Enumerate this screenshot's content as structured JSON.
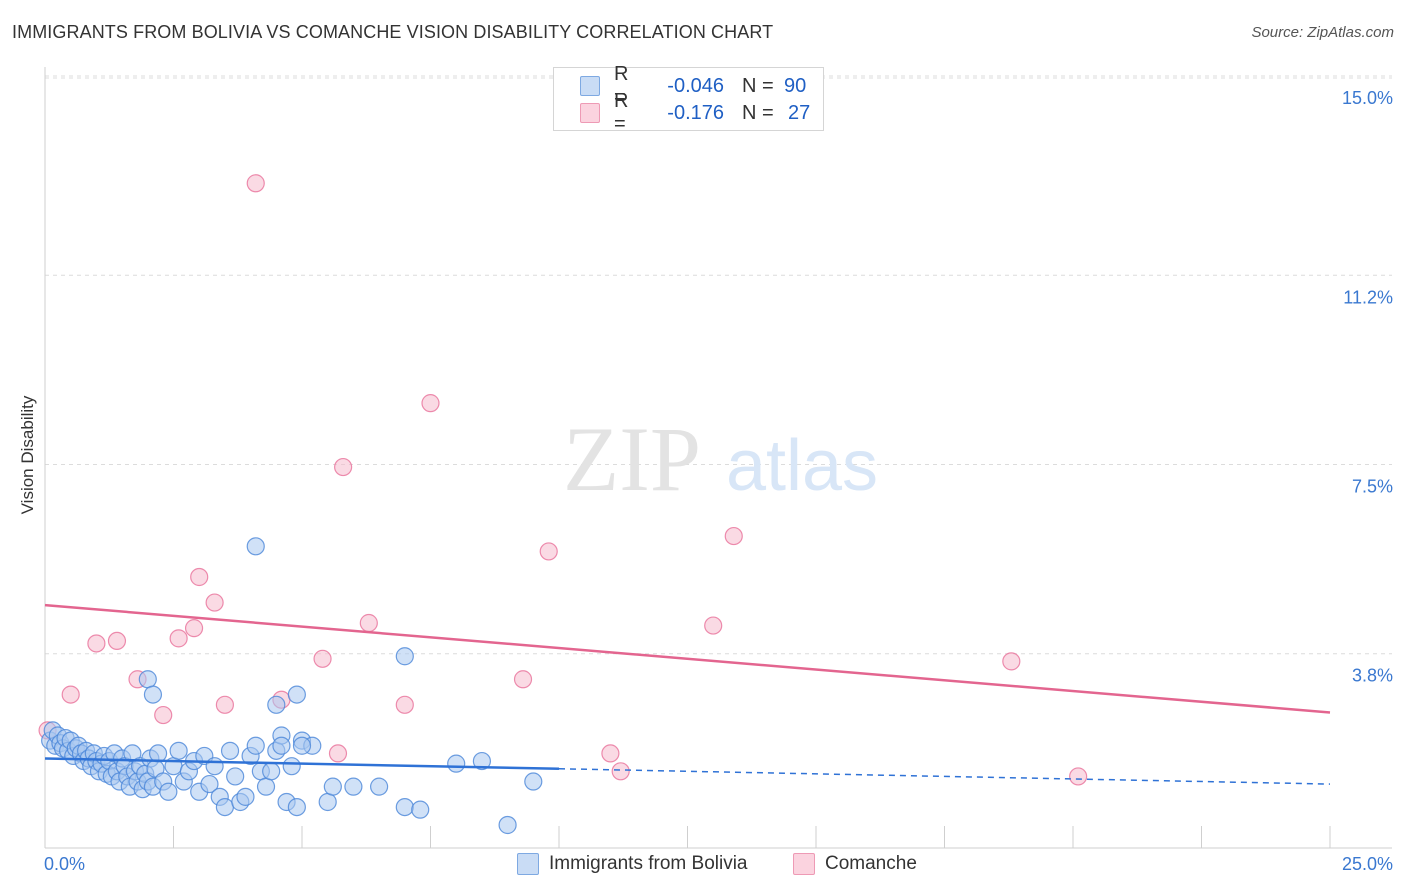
{
  "title": "IMMIGRANTS FROM BOLIVIA VS COMANCHE VISION DISABILITY CORRELATION CHART",
  "source": "Source: ZipAtlas.com",
  "watermark": {
    "zip": "ZIP",
    "atlas": "atlas"
  },
  "legend": {
    "rows": [
      {
        "r_label": "R =",
        "r_value": "-0.046",
        "n_label": "N =",
        "n_value": "90",
        "color": "#a9c8f0"
      },
      {
        "r_label": "R =",
        "r_value": "-0.176",
        "n_label": "N =",
        "n_value": "27",
        "color": "#f6bccd"
      }
    ]
  },
  "bottom_legend": [
    {
      "label": "Immigrants from Bolivia",
      "color": "#a9c8f0"
    },
    {
      "label": "Comanche",
      "color": "#f6bccd"
    }
  ],
  "chart_data": {
    "type": "scatter",
    "title": "IMMIGRANTS FROM BOLIVIA VS COMANCHE VISION DISABILITY CORRELATION CHART",
    "xlabel": "",
    "ylabel": "Vision Disability",
    "xlim": [
      0,
      25
    ],
    "ylim": [
      0,
      15
    ],
    "x_tick_labels": [
      {
        "value": 0,
        "label": "0.0%"
      },
      {
        "value": 25,
        "label": "25.0%"
      }
    ],
    "y_tick_labels": [
      {
        "value": 3.8,
        "label": "3.8%"
      },
      {
        "value": 7.5,
        "label": "7.5%"
      },
      {
        "value": 11.2,
        "label": "11.2%"
      },
      {
        "value": 15.0,
        "label": "15.0%"
      }
    ],
    "series": [
      {
        "name": "Immigrants from Bolivia",
        "color": "#4a86d8",
        "fill": "#a9c8f0",
        "trend": {
          "x0": 0,
          "y0": 1.75,
          "x1": 10,
          "y1": 1.55,
          "dash_x1": 25,
          "dash_y1": 1.25
        },
        "points": [
          [
            0.1,
            2.1
          ],
          [
            0.15,
            2.3
          ],
          [
            0.2,
            2.0
          ],
          [
            0.25,
            2.2
          ],
          [
            0.3,
            2.05
          ],
          [
            0.35,
            1.95
          ],
          [
            0.4,
            2.15
          ],
          [
            0.45,
            1.9
          ],
          [
            0.5,
            2.1
          ],
          [
            0.55,
            1.8
          ],
          [
            0.6,
            1.95
          ],
          [
            0.65,
            2.0
          ],
          [
            0.7,
            1.85
          ],
          [
            0.75,
            1.7
          ],
          [
            0.8,
            1.9
          ],
          [
            0.85,
            1.75
          ],
          [
            0.9,
            1.6
          ],
          [
            0.95,
            1.85
          ],
          [
            1.0,
            1.7
          ],
          [
            1.05,
            1.5
          ],
          [
            1.1,
            1.65
          ],
          [
            1.15,
            1.8
          ],
          [
            1.2,
            1.45
          ],
          [
            1.25,
            1.7
          ],
          [
            1.3,
            1.4
          ],
          [
            1.35,
            1.85
          ],
          [
            1.4,
            1.5
          ],
          [
            1.45,
            1.3
          ],
          [
            1.5,
            1.75
          ],
          [
            1.55,
            1.6
          ],
          [
            1.6,
            1.4
          ],
          [
            1.65,
            1.2
          ],
          [
            1.7,
            1.85
          ],
          [
            1.75,
            1.5
          ],
          [
            1.8,
            1.3
          ],
          [
            1.85,
            1.6
          ],
          [
            1.9,
            1.15
          ],
          [
            1.95,
            1.45
          ],
          [
            2.0,
            1.3
          ],
          [
            2.05,
            1.75
          ],
          [
            2.1,
            1.2
          ],
          [
            2.15,
            1.55
          ],
          [
            2.2,
            1.85
          ],
          [
            2.3,
            1.3
          ],
          [
            2.4,
            1.1
          ],
          [
            2.5,
            1.6
          ],
          [
            2.6,
            1.9
          ],
          [
            2.7,
            1.3
          ],
          [
            2.8,
            1.5
          ],
          [
            2.9,
            1.7
          ],
          [
            3.0,
            1.1
          ],
          [
            3.1,
            1.8
          ],
          [
            3.2,
            1.25
          ],
          [
            3.3,
            1.6
          ],
          [
            3.4,
            1.0
          ],
          [
            3.5,
            0.8
          ],
          [
            3.6,
            1.9
          ],
          [
            3.7,
            1.4
          ],
          [
            3.8,
            0.9
          ],
          [
            3.9,
            1.0
          ],
          [
            4.0,
            1.8
          ],
          [
            4.1,
            2.0
          ],
          [
            4.2,
            1.5
          ],
          [
            4.3,
            1.2
          ],
          [
            4.4,
            1.5
          ],
          [
            4.5,
            1.9
          ],
          [
            4.6,
            2.2
          ],
          [
            4.7,
            0.9
          ],
          [
            4.8,
            1.6
          ],
          [
            4.9,
            0.8
          ],
          [
            5.0,
            2.1
          ],
          [
            5.2,
            2.0
          ],
          [
            5.5,
            0.9
          ],
          [
            6.0,
            1.2
          ],
          [
            6.5,
            1.2
          ],
          [
            7.0,
            0.8
          ],
          [
            7.3,
            0.75
          ],
          [
            8.0,
            1.65
          ],
          [
            8.5,
            1.7
          ],
          [
            9.0,
            0.45
          ],
          [
            9.5,
            1.3
          ],
          [
            2.0,
            3.3
          ],
          [
            2.1,
            3.0
          ],
          [
            4.5,
            2.8
          ],
          [
            4.6,
            2.0
          ],
          [
            4.9,
            3.0
          ],
          [
            5.0,
            2.0
          ],
          [
            4.1,
            5.9
          ],
          [
            7.0,
            3.75
          ],
          [
            5.6,
            1.2
          ]
        ]
      },
      {
        "name": "Comanche",
        "color": "#e8709a",
        "fill": "#f6bccd",
        "trend": {
          "x0": 0,
          "y0": 4.75,
          "x1": 25,
          "y1": 2.65
        },
        "points": [
          [
            0.05,
            2.3
          ],
          [
            0.5,
            3.0
          ],
          [
            1.0,
            4.0
          ],
          [
            1.4,
            4.05
          ],
          [
            1.8,
            3.3
          ],
          [
            2.3,
            2.6
          ],
          [
            2.6,
            4.1
          ],
          [
            2.9,
            4.3
          ],
          [
            3.0,
            5.3
          ],
          [
            3.3,
            4.8
          ],
          [
            3.5,
            2.8
          ],
          [
            4.1,
            13.0
          ],
          [
            4.6,
            2.9
          ],
          [
            5.4,
            3.7
          ],
          [
            5.7,
            1.85
          ],
          [
            5.8,
            7.45
          ],
          [
            6.3,
            4.4
          ],
          [
            7.0,
            2.8
          ],
          [
            7.5,
            8.7
          ],
          [
            9.3,
            3.3
          ],
          [
            9.8,
            5.8
          ],
          [
            11.0,
            1.85
          ],
          [
            11.2,
            1.5
          ],
          [
            13.0,
            4.35
          ],
          [
            13.4,
            6.1
          ],
          [
            18.8,
            3.65
          ],
          [
            20.1,
            1.4
          ]
        ]
      }
    ]
  }
}
